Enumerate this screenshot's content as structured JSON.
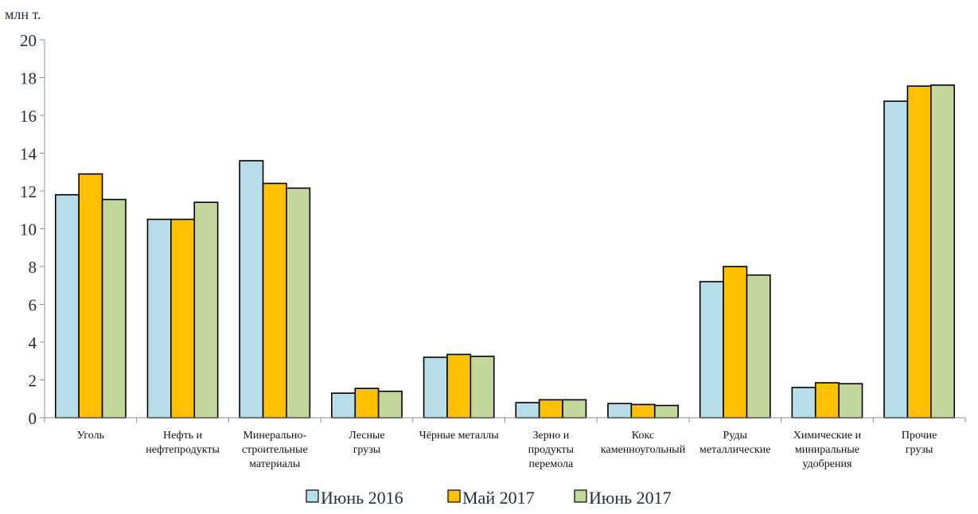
{
  "chart_data": {
    "type": "bar",
    "ylabel": "млн т.",
    "ylim": [
      0,
      20
    ],
    "yticks": [
      0,
      2,
      4,
      6,
      8,
      10,
      12,
      14,
      16,
      18,
      20
    ],
    "grid": false,
    "legend_position": "bottom",
    "categories": [
      [
        "Уголь"
      ],
      [
        "Нефть и",
        "нефтепродукты"
      ],
      [
        "Минерально-",
        "строительные",
        "материалы"
      ],
      [
        "Лесные",
        "грузы"
      ],
      [
        "Чёрные металлы"
      ],
      [
        "Зерно и",
        "продукты",
        "перемола"
      ],
      [
        "Кокс",
        "каменноугольный"
      ],
      [
        "Руды",
        "металлические"
      ],
      [
        "Химические и",
        "миниральные",
        "удобрения"
      ],
      [
        "Прочие",
        "грузы"
      ]
    ],
    "series": [
      {
        "name": "Июнь 2016",
        "color": "#b7dde8",
        "values": [
          11.8,
          10.5,
          13.6,
          1.3,
          3.2,
          0.8,
          0.75,
          7.2,
          1.6,
          16.75
        ]
      },
      {
        "name": "Май 2017",
        "color": "#ffc000",
        "values": [
          12.9,
          10.5,
          12.4,
          1.55,
          3.35,
          0.95,
          0.7,
          8.0,
          1.85,
          17.55
        ]
      },
      {
        "name": "Июнь 2017",
        "color": "#c3d69b",
        "values": [
          11.55,
          11.4,
          12.15,
          1.4,
          3.25,
          0.95,
          0.65,
          7.55,
          1.8,
          17.6
        ]
      }
    ]
  }
}
